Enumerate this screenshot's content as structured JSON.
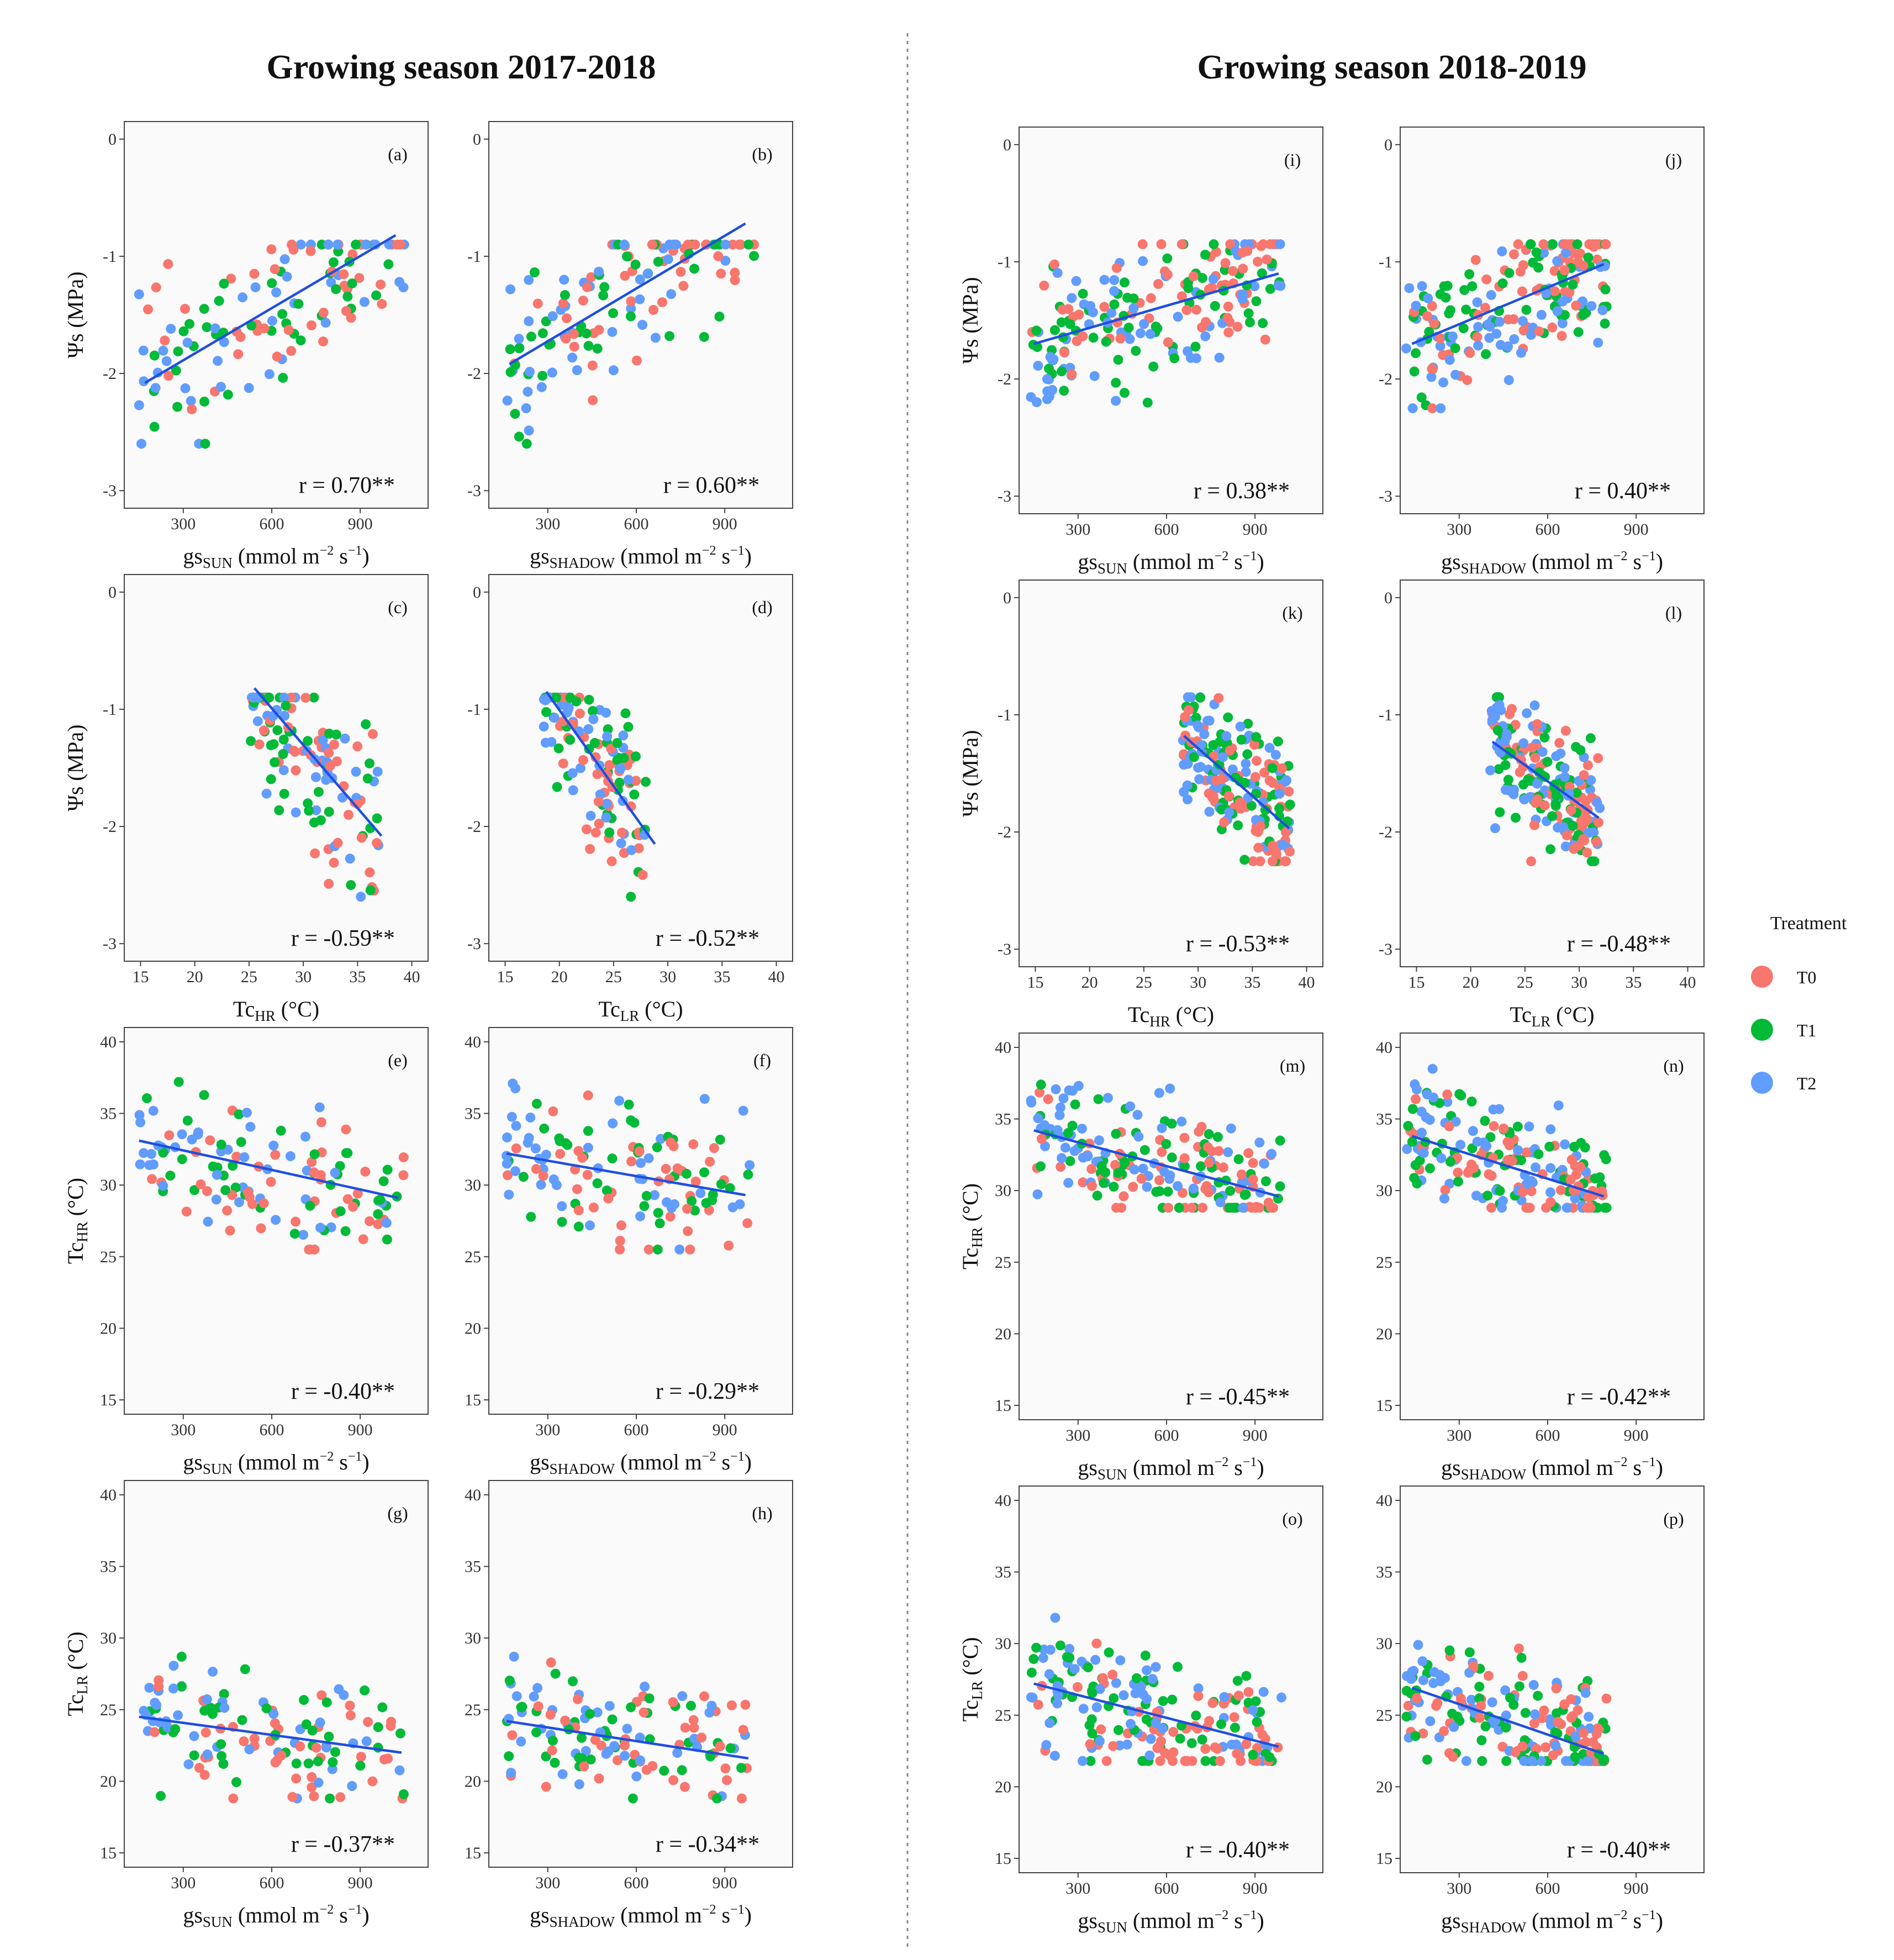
{
  "titles": {
    "left": "Growing season 2017-2018",
    "right": "Growing season 2018-2019"
  },
  "colors": {
    "T0": "#F8766D",
    "T1": "#00BA38",
    "T2": "#619CFF",
    "fit_line": "#1F4FE0",
    "panel_bg": "#FAFAFA"
  },
  "legend": {
    "title": "Treatment",
    "items": [
      {
        "label": "T0",
        "color": "#F8766D"
      },
      {
        "label": "T1",
        "color": "#00BA38"
      },
      {
        "label": "T2",
        "color": "#619CFF"
      }
    ]
  },
  "axis_texts": {
    "psi": {
      "main": "Ψs (MPa)"
    },
    "tchr": {
      "main": "Tc",
      "sub": "HR",
      "after": " (°C)"
    },
    "tclr": {
      "main": "Tc",
      "sub": "LR",
      "after": " (°C)"
    },
    "gs_sun": {
      "main": "gs",
      "sub": "SUN",
      "mid": " (mmol m",
      "sup1": "−2",
      "mid2": " s",
      "sup2": "−1",
      "end": ")"
    },
    "gs_shadow": {
      "main": "gs",
      "sub": "SHADOW",
      "mid": " (mmol m",
      "sup1": "−2",
      "mid2": " s",
      "sup2": "−1",
      "end": ")"
    }
  },
  "chart_data": [
    {
      "type": "scatter",
      "panel": "(a)",
      "season": "2017-2018",
      "x": "gs_sun",
      "y": "psi",
      "xlim": [
        100,
        1130
      ],
      "ylim": [
        -3.15,
        0.15
      ],
      "xticks": [
        300,
        600,
        900
      ],
      "yticks": [
        0,
        -1,
        -2,
        -3
      ],
      "xdom": [
        150,
        1050
      ],
      "ydom": [
        -2.6,
        -0.9
      ],
      "fit": {
        "x": [
          170,
          1020
        ],
        "y": [
          -2.08,
          -0.82
        ]
      },
      "r": "r = 0.70**",
      "n": 130,
      "seed": 11
    },
    {
      "type": "scatter",
      "panel": "(b)",
      "season": "2017-2018",
      "x": "gs_shadow",
      "y": "psi",
      "xlim": [
        100,
        1130
      ],
      "ylim": [
        -3.15,
        0.15
      ],
      "xticks": [
        300,
        600,
        900
      ],
      "yticks": [
        0,
        -1,
        -2,
        -3
      ],
      "xdom": [
        160,
        1000
      ],
      "ydom": [
        -2.6,
        -0.9
      ],
      "fit": {
        "x": [
          170,
          970
        ],
        "y": [
          -1.92,
          -0.72
        ]
      },
      "r": "r = 0.60**",
      "n": 130,
      "seed": 12
    },
    {
      "type": "scatter",
      "panel": "(c)",
      "season": "2017-2018",
      "x": "tchr",
      "y": "psi",
      "xlim": [
        13.5,
        41.5
      ],
      "ylim": [
        -3.15,
        0.15
      ],
      "xticks": [
        15,
        20,
        25,
        30,
        35,
        40
      ],
      "yticks": [
        0,
        -1,
        -2,
        -3
      ],
      "xdom": [
        25,
        37
      ],
      "ydom": [
        -2.6,
        -0.9
      ],
      "fit": {
        "x": [
          25.5,
          37.2
        ],
        "y": [
          -0.82,
          -2.08
        ]
      },
      "r": "r = -0.59**",
      "n": 130,
      "seed": 13
    },
    {
      "type": "scatter",
      "panel": "(d)",
      "season": "2017-2018",
      "x": "tclr",
      "y": "psi",
      "xlim": [
        13.5,
        41.5
      ],
      "ylim": [
        -3.15,
        0.15
      ],
      "xticks": [
        15,
        20,
        25,
        30,
        35,
        40
      ],
      "yticks": [
        0,
        -1,
        -2,
        -3
      ],
      "xdom": [
        18.5,
        28
      ],
      "ydom": [
        -2.6,
        -0.9
      ],
      "fit": {
        "x": [
          18.8,
          28.8
        ],
        "y": [
          -0.85,
          -2.15
        ]
      },
      "r": "r = -0.52**",
      "n": 130,
      "seed": 14
    },
    {
      "type": "scatter",
      "panel": "(e)",
      "season": "2017-2018",
      "x": "gs_sun",
      "y": "tchr",
      "xlim": [
        100,
        1130
      ],
      "ylim": [
        14,
        41
      ],
      "xticks": [
        300,
        600,
        900
      ],
      "yticks": [
        15,
        20,
        25,
        30,
        35,
        40
      ],
      "xdom": [
        150,
        1050
      ],
      "ydom": [
        25.5,
        37.2
      ],
      "fit": {
        "x": [
          150,
          1030
        ],
        "y": [
          33.1,
          29.1
        ]
      },
      "r": "r = -0.40**",
      "n": 130,
      "seed": 15
    },
    {
      "type": "scatter",
      "panel": "(f)",
      "season": "2017-2018",
      "x": "gs_shadow",
      "y": "tchr",
      "xlim": [
        100,
        1130
      ],
      "ylim": [
        14,
        41
      ],
      "xticks": [
        300,
        600,
        900
      ],
      "yticks": [
        15,
        20,
        25,
        30,
        35,
        40
      ],
      "xdom": [
        160,
        990
      ],
      "ydom": [
        25.5,
        37.2
      ],
      "fit": {
        "x": [
          160,
          970
        ],
        "y": [
          32.2,
          29.3
        ]
      },
      "r": "r = -0.29**",
      "n": 130,
      "seed": 16
    },
    {
      "type": "scatter",
      "panel": "(g)",
      "season": "2017-2018",
      "x": "gs_sun",
      "y": "tclr",
      "xlim": [
        100,
        1130
      ],
      "ylim": [
        14,
        41
      ],
      "xticks": [
        300,
        600,
        900
      ],
      "yticks": [
        15,
        20,
        25,
        30,
        35,
        40
      ],
      "xdom": [
        150,
        1050
      ],
      "ydom": [
        18.8,
        28.7
      ],
      "fit": {
        "x": [
          150,
          1040
        ],
        "y": [
          24.5,
          22.0
        ]
      },
      "r": "r = -0.37**",
      "n": 130,
      "seed": 17
    },
    {
      "type": "scatter",
      "panel": "(h)",
      "season": "2017-2018",
      "x": "gs_shadow",
      "y": "tclr",
      "xlim": [
        100,
        1130
      ],
      "ylim": [
        14,
        41
      ],
      "xticks": [
        300,
        600,
        900
      ],
      "yticks": [
        15,
        20,
        25,
        30,
        35,
        40
      ],
      "xdom": [
        160,
        990
      ],
      "ydom": [
        18.8,
        28.7
      ],
      "fit": {
        "x": [
          160,
          980
        ],
        "y": [
          24.2,
          21.6
        ]
      },
      "r": "r = -0.34**",
      "n": 130,
      "seed": 18
    },
    {
      "type": "scatter",
      "panel": "(i)",
      "season": "2018-2019",
      "x": "gs_sun",
      "y": "psi",
      "xlim": [
        100,
        1130
      ],
      "ylim": [
        -3.15,
        0.15
      ],
      "xticks": [
        300,
        600,
        900
      ],
      "yticks": [
        0,
        -1,
        -2,
        -3
      ],
      "xdom": [
        140,
        990
      ],
      "ydom": [
        -2.25,
        -0.85
      ],
      "fit": {
        "x": [
          150,
          980
        ],
        "y": [
          -1.7,
          -1.1
        ]
      },
      "r": "r = 0.38**",
      "n": 200,
      "seed": 21
    },
    {
      "type": "scatter",
      "panel": "(j)",
      "season": "2018-2019",
      "x": "gs_shadow",
      "y": "psi",
      "xlim": [
        100,
        1130
      ],
      "ylim": [
        -3.15,
        0.15
      ],
      "xticks": [
        300,
        600,
        900
      ],
      "yticks": [
        0,
        -1,
        -2,
        -3
      ],
      "xdom": [
        120,
        800
      ],
      "ydom": [
        -2.25,
        -0.85
      ],
      "fit": {
        "x": [
          140,
          790
        ],
        "y": [
          -1.7,
          -1.02
        ]
      },
      "r": "r = 0.40**",
      "n": 200,
      "seed": 22
    },
    {
      "type": "scatter",
      "panel": "(k)",
      "season": "2018-2019",
      "x": "tchr",
      "y": "psi",
      "xlim": [
        13.5,
        41.5
      ],
      "ylim": [
        -3.15,
        0.15
      ],
      "xticks": [
        15,
        20,
        25,
        30,
        35,
        40
      ],
      "yticks": [
        0,
        -1,
        -2,
        -3
      ],
      "xdom": [
        28.5,
        38.5
      ],
      "ydom": [
        -2.25,
        -0.85
      ],
      "fit": {
        "x": [
          28.7,
          38.4
        ],
        "y": [
          -1.18,
          -1.97
        ]
      },
      "r": "r = -0.53**",
      "n": 200,
      "seed": 23
    },
    {
      "type": "scatter",
      "panel": "(l)",
      "season": "2018-2019",
      "x": "tclr",
      "y": "psi",
      "xlim": [
        13.5,
        41.5
      ],
      "ylim": [
        -3.15,
        0.15
      ],
      "xticks": [
        15,
        20,
        25,
        30,
        35,
        40
      ],
      "yticks": [
        0,
        -1,
        -2,
        -3
      ],
      "xdom": [
        21.8,
        32
      ],
      "ydom": [
        -2.25,
        -0.85
      ],
      "fit": {
        "x": [
          22,
          31.8
        ],
        "y": [
          -1.23,
          -1.88
        ]
      },
      "r": "r = -0.48**",
      "n": 200,
      "seed": 24
    },
    {
      "type": "scatter",
      "panel": "(m)",
      "season": "2018-2019",
      "x": "gs_sun",
      "y": "tchr",
      "xlim": [
        100,
        1130
      ],
      "ylim": [
        14,
        41
      ],
      "xticks": [
        300,
        600,
        900
      ],
      "yticks": [
        15,
        20,
        25,
        30,
        35,
        40
      ],
      "xdom": [
        140,
        990
      ],
      "ydom": [
        28.8,
        38.5
      ],
      "fit": {
        "x": [
          150,
          980
        ],
        "y": [
          34.2,
          29.6
        ]
      },
      "r": "r = -0.45**",
      "n": 200,
      "seed": 25
    },
    {
      "type": "scatter",
      "panel": "(n)",
      "season": "2018-2019",
      "x": "gs_shadow",
      "y": "tchr",
      "xlim": [
        100,
        1130
      ],
      "ylim": [
        14,
        41
      ],
      "xticks": [
        300,
        600,
        900
      ],
      "yticks": [
        15,
        20,
        25,
        30,
        35,
        40
      ],
      "xdom": [
        120,
        800
      ],
      "ydom": [
        28.8,
        38.5
      ],
      "fit": {
        "x": [
          140,
          790
        ],
        "y": [
          33.8,
          29.6
        ]
      },
      "r": "r = -0.42**",
      "n": 200,
      "seed": 26
    },
    {
      "type": "scatter",
      "panel": "(o)",
      "season": "2018-2019",
      "x": "gs_sun",
      "y": "tclr",
      "xlim": [
        100,
        1130
      ],
      "ylim": [
        14,
        41
      ],
      "xticks": [
        300,
        600,
        900
      ],
      "yticks": [
        15,
        20,
        25,
        30,
        35,
        40
      ],
      "xdom": [
        140,
        990
      ],
      "ydom": [
        21.8,
        31.8
      ],
      "fit": {
        "x": [
          150,
          980
        ],
        "y": [
          27.2,
          22.8
        ]
      },
      "r": "r = -0.40**",
      "n": 200,
      "seed": 27
    },
    {
      "type": "scatter",
      "panel": "(p)",
      "season": "2018-2019",
      "x": "gs_shadow",
      "y": "tclr",
      "xlim": [
        100,
        1130
      ],
      "ylim": [
        14,
        41
      ],
      "xticks": [
        300,
        600,
        900
      ],
      "yticks": [
        15,
        20,
        25,
        30,
        35,
        40
      ],
      "xdom": [
        120,
        800
      ],
      "ydom": [
        21.8,
        31.8
      ],
      "fit": {
        "x": [
          140,
          790
        ],
        "y": [
          26.9,
          22.3
        ]
      },
      "r": "r = -0.40**",
      "n": 200,
      "seed": 28
    }
  ]
}
